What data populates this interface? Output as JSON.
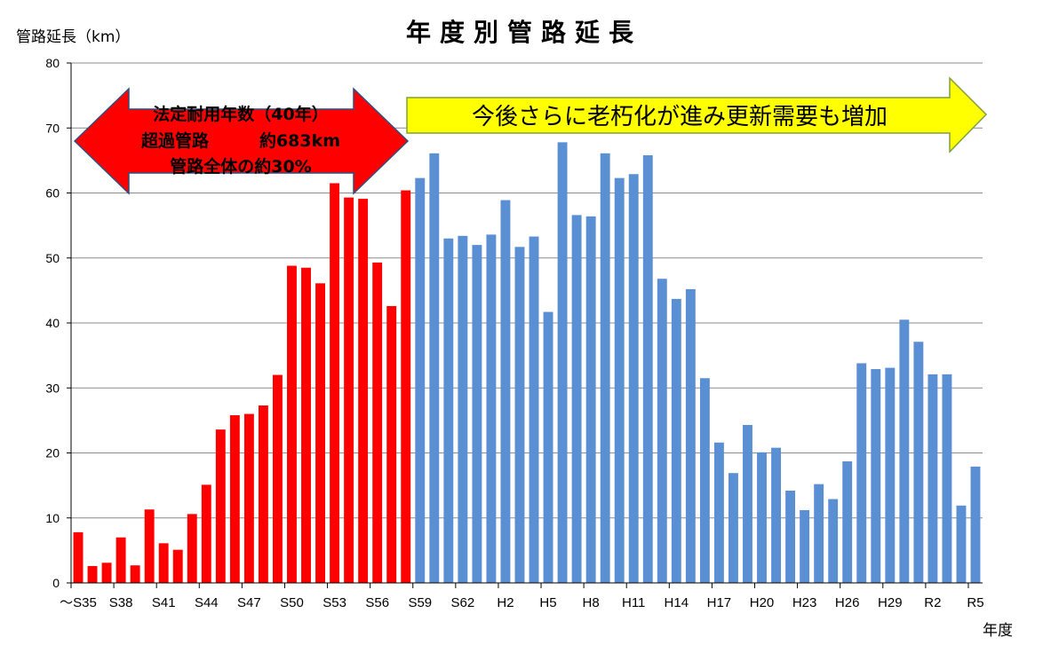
{
  "chart_data": {
    "type": "bar",
    "title": "年度別管路延長",
    "ylabel": "管路延長（km）",
    "xlabel": "年度",
    "ylim": [
      0,
      80
    ],
    "yticks": [
      0,
      10,
      20,
      30,
      40,
      50,
      60,
      70,
      80
    ],
    "grid": true,
    "x_tick_labels": [
      "～S35",
      "S38",
      "S41",
      "S44",
      "S47",
      "S50",
      "S53",
      "S56",
      "S59",
      "S62",
      "H2",
      "H5",
      "H8",
      "H11",
      "H14",
      "H17",
      "H20",
      "H23",
      "H26",
      "H29",
      "R2",
      "R5"
    ],
    "series": [
      {
        "color": "#ff0000",
        "values": [
          7.8,
          2.6,
          3.1,
          7.0,
          2.7,
          11.3,
          6.1,
          5.1,
          10.6,
          15.1,
          23.6,
          25.8,
          26.0,
          27.3,
          32.0,
          48.8,
          48.5,
          46.1,
          61.5,
          59.3,
          59.1,
          49.3,
          42.6,
          60.4
        ]
      },
      {
        "color": "#5b8fd4",
        "values": [
          62.3,
          66.1,
          53.0,
          53.4,
          52.0,
          53.6,
          58.9,
          51.7,
          53.3,
          41.7,
          67.8,
          56.6,
          56.4,
          66.1,
          62.3,
          62.9,
          65.8,
          46.8,
          43.7,
          45.2,
          31.5,
          21.6,
          16.9,
          24.3,
          20.1,
          20.8,
          14.2,
          11.2,
          15.2,
          12.9,
          18.7,
          33.8,
          32.9,
          33.1,
          40.5,
          37.1,
          32.1,
          32.1,
          11.9,
          17.9
        ]
      }
    ],
    "annotations": {
      "red_arrow": {
        "line1": "法定耐用年数（40年）",
        "line2": "超過管路　　　約683km",
        "line3": "管路全体の約30%",
        "color": "#ff0000"
      },
      "yellow_arrow": {
        "text": "今後さらに老朽化が進み更新需要も増加",
        "color": "#ffff00"
      }
    }
  }
}
